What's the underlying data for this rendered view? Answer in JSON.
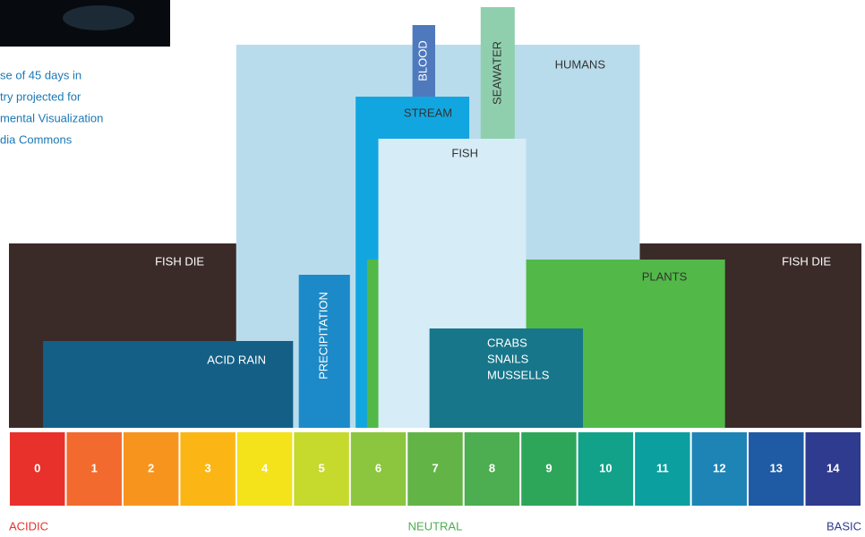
{
  "caption": [
    "se of 45 days in",
    "try projected for",
    "mental Visualization",
    "dia Commons"
  ],
  "chart_data": {
    "type": "range",
    "xlim": [
      0,
      15
    ],
    "xticks": [
      0,
      1,
      2,
      3,
      4,
      5,
      6,
      7,
      8,
      9,
      10,
      11,
      12,
      13,
      14
    ],
    "tick_colors": [
      "#e8312a",
      "#f26a2e",
      "#f7941d",
      "#fbb615",
      "#f4e21b",
      "#c6d92d",
      "#8cc63f",
      "#62b446",
      "#4cae50",
      "#2ea65a",
      "#12a28a",
      "#0b9f9f",
      "#1e84b6",
      "#1f5aa5",
      "#2e3b8f"
    ],
    "scale_labels": [
      {
        "text": "ACIDIC",
        "color": "#e8312a"
      },
      {
        "text": "NEUTRAL",
        "color": "#4cae50"
      },
      {
        "text": "BASIC",
        "color": "#2e3b8f"
      }
    ],
    "ranges": [
      {
        "label": [
          "FISH DIE"
        ],
        "start": 0,
        "end": 4.0,
        "color": "#3a2a28"
      },
      {
        "label": [
          "FISH DIE"
        ],
        "start": 11.1,
        "end": 15,
        "color": "#3a2a28"
      },
      {
        "label": [
          "HUMANS"
        ],
        "start": 4.0,
        "end": 11.1,
        "color": "#b9dcec"
      },
      {
        "label": [
          "BLOOD"
        ],
        "start": 7.1,
        "end": 7.5,
        "color": "#4f79bd"
      },
      {
        "label": [
          "SEAWATER"
        ],
        "start": 8.3,
        "end": 8.9,
        "color": "#8fcfae"
      },
      {
        "label": [
          "STREAM"
        ],
        "start": 6.1,
        "end": 8.1,
        "color": "#12a6e0"
      },
      {
        "label": [
          "PLANTS"
        ],
        "start": 6.3,
        "end": 12.6,
        "color": "#52b948"
      },
      {
        "label": [
          "FISH"
        ],
        "start": 6.5,
        "end": 9.1,
        "color": "#d6ecf6"
      },
      {
        "label": [
          "ACID RAIN"
        ],
        "start": 0.6,
        "end": 5.0,
        "color": "#145f86"
      },
      {
        "label": [
          "PRECIPITATION"
        ],
        "start": 5.1,
        "end": 6.0,
        "color": "#1c8ac8"
      },
      {
        "label": [
          "CRABS",
          "SNAILS",
          "MUSSELLS"
        ],
        "start": 7.4,
        "end": 10.1,
        "color": "#17768a"
      }
    ]
  }
}
